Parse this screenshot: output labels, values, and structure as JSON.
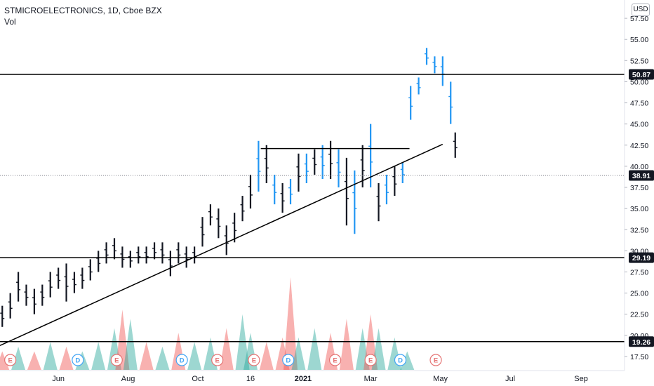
{
  "header": {
    "symbol": "STMICROELECTRONICS, 1D, Cboe BZX",
    "volume_label": "Vol"
  },
  "currency_label": "USD",
  "colors": {
    "up_bar": "#2196f3",
    "down_bar": "#131722",
    "volume_up": "#26a69a",
    "volume_down": "#ef5350",
    "earnings_marker": "#e57373",
    "dividend_marker": "#42a5f5",
    "line": "#000000"
  },
  "chart_data": {
    "type": "ohlc",
    "title": "STMICROELECTRONICS, 1D, Cboe BZX",
    "y_axis": {
      "ticks": [
        "17.50",
        "20.00",
        "22.50",
        "25.00",
        "27.50",
        "30.00",
        "32.50",
        "35.00",
        "37.50",
        "40.00",
        "42.50",
        "45.00",
        "47.50",
        "50.00",
        "52.50",
        "55.00",
        "57.50"
      ],
      "range": [
        16.5,
        59.5
      ],
      "side": "right"
    },
    "x_axis": {
      "ticks": [
        {
          "label": "Jun",
          "date": "2020-06-01",
          "bold": false
        },
        {
          "label": "Aug",
          "date": "2020-08-01",
          "bold": false
        },
        {
          "label": "Oct",
          "date": "2020-10-01",
          "bold": false
        },
        {
          "label": "16",
          "date": "2020-11-16",
          "bold": false
        },
        {
          "label": "2021",
          "date": "2021-01-01",
          "bold": true
        },
        {
          "label": "Mar",
          "date": "2021-03-01",
          "bold": false
        },
        {
          "label": "May",
          "date": "2021-05-01",
          "bold": false
        },
        {
          "label": "Jul",
          "date": "2021-07-01",
          "bold": false
        },
        {
          "label": "Sep",
          "date": "2021-09-01",
          "bold": false
        }
      ],
      "range": [
        "2020-04-11",
        "2021-10-09"
      ]
    },
    "last_price": "38.91",
    "horizontal_levels": [
      "50.87",
      "29.19",
      "19.26"
    ],
    "trendline": {
      "from": {
        "date": "2020-04-11",
        "price": 18.8
      },
      "to": {
        "date": "2021-05-03",
        "price": 42.6
      }
    },
    "resistance_segment": {
      "from": {
        "date": "2020-11-25",
        "price": 42.1
      },
      "to": {
        "date": "2021-04-04",
        "price": 42.1
      }
    },
    "price_bars": [
      {
        "date": "2020-04-13",
        "low": 21.0,
        "high": 23.5
      },
      {
        "date": "2020-04-20",
        "low": 22.0,
        "high": 25.0
      },
      {
        "date": "2020-04-27",
        "low": 24.0,
        "high": 27.5
      },
      {
        "date": "2020-05-04",
        "low": 23.5,
        "high": 26.0
      },
      {
        "date": "2020-05-11",
        "low": 22.5,
        "high": 25.5
      },
      {
        "date": "2020-05-18",
        "low": 23.5,
        "high": 26.0
      },
      {
        "date": "2020-05-25",
        "low": 24.5,
        "high": 27.5
      },
      {
        "date": "2020-06-01",
        "low": 25.5,
        "high": 28.0
      },
      {
        "date": "2020-06-08",
        "low": 24.0,
        "high": 28.5
      },
      {
        "date": "2020-06-15",
        "low": 25.0,
        "high": 27.5
      },
      {
        "date": "2020-06-22",
        "low": 25.5,
        "high": 28.0
      },
      {
        "date": "2020-06-29",
        "low": 26.5,
        "high": 29.0
      },
      {
        "date": "2020-07-06",
        "low": 27.5,
        "high": 30.0
      },
      {
        "date": "2020-07-13",
        "low": 28.5,
        "high": 31.0
      },
      {
        "date": "2020-07-20",
        "low": 29.0,
        "high": 31.5
      },
      {
        "date": "2020-07-27",
        "low": 28.0,
        "high": 30.5
      },
      {
        "date": "2020-08-03",
        "low": 28.0,
        "high": 30.0
      },
      {
        "date": "2020-08-10",
        "low": 28.5,
        "high": 30.5
      },
      {
        "date": "2020-08-17",
        "low": 28.5,
        "high": 30.5
      },
      {
        "date": "2020-08-24",
        "low": 29.0,
        "high": 31.0
      },
      {
        "date": "2020-08-31",
        "low": 28.5,
        "high": 31.0
      },
      {
        "date": "2020-09-07",
        "low": 27.0,
        "high": 30.0
      },
      {
        "date": "2020-09-14",
        "low": 28.5,
        "high": 31.0
      },
      {
        "date": "2020-09-21",
        "low": 28.0,
        "high": 30.5
      },
      {
        "date": "2020-09-28",
        "low": 28.5,
        "high": 30.5
      },
      {
        "date": "2020-10-05",
        "low": 30.5,
        "high": 34.0
      },
      {
        "date": "2020-10-12",
        "low": 33.0,
        "high": 35.5
      },
      {
        "date": "2020-10-19",
        "low": 31.5,
        "high": 35.0
      },
      {
        "date": "2020-10-26",
        "low": 29.5,
        "high": 33.0
      },
      {
        "date": "2020-11-02",
        "low": 31.0,
        "high": 34.5
      },
      {
        "date": "2020-11-09",
        "low": 33.5,
        "high": 36.5
      },
      {
        "date": "2020-11-16",
        "low": 35.0,
        "high": 39.0
      },
      {
        "date": "2020-11-23",
        "low": 37.0,
        "high": 43.0
      },
      {
        "date": "2020-11-30",
        "low": 38.0,
        "high": 42.5
      },
      {
        "date": "2020-12-07",
        "low": 35.5,
        "high": 39.0
      },
      {
        "date": "2020-12-14",
        "low": 34.5,
        "high": 38.0
      },
      {
        "date": "2020-12-21",
        "low": 35.5,
        "high": 38.5
      },
      {
        "date": "2020-12-28",
        "low": 37.0,
        "high": 41.5
      },
      {
        "date": "2021-01-04",
        "low": 38.0,
        "high": 41.5
      },
      {
        "date": "2021-01-11",
        "low": 39.0,
        "high": 42.0
      },
      {
        "date": "2021-01-18",
        "low": 38.5,
        "high": 42.5
      },
      {
        "date": "2021-01-25",
        "low": 38.5,
        "high": 43.0
      },
      {
        "date": "2021-02-01",
        "low": 37.5,
        "high": 42.0
      },
      {
        "date": "2021-02-08",
        "low": 33.0,
        "high": 41.0
      },
      {
        "date": "2021-02-15",
        "low": 32.0,
        "high": 39.5
      },
      {
        "date": "2021-02-22",
        "low": 37.5,
        "high": 42.5
      },
      {
        "date": "2021-03-01",
        "low": 37.5,
        "high": 45.0
      },
      {
        "date": "2021-03-08",
        "low": 33.5,
        "high": 38.0
      },
      {
        "date": "2021-03-15",
        "low": 35.5,
        "high": 39.0
      },
      {
        "date": "2021-03-22",
        "low": 36.5,
        "high": 40.0
      },
      {
        "date": "2021-03-29",
        "low": 38.0,
        "high": 40.5
      },
      {
        "date": "2021-04-05",
        "low": 45.5,
        "high": 49.5
      },
      {
        "date": "2021-04-12",
        "low": 48.5,
        "high": 50.5
      },
      {
        "date": "2021-04-19",
        "low": 52.0,
        "high": 54.0
      },
      {
        "date": "2021-04-26",
        "low": 51.0,
        "high": 53.0
      },
      {
        "date": "2021-05-03",
        "low": 49.5,
        "high": 53.0
      },
      {
        "date": "2021-05-10",
        "low": 45.0,
        "high": 50.0
      },
      {
        "date": "2021-05-14",
        "low": 41.0,
        "high": 44.0
      }
    ],
    "volume": [
      {
        "date": "2020-04-13",
        "value": 0.2,
        "dir": "down"
      },
      {
        "date": "2020-04-27",
        "value": 0.25,
        "dir": "up"
      },
      {
        "date": "2020-05-11",
        "value": 0.2,
        "dir": "down"
      },
      {
        "date": "2020-05-25",
        "value": 0.3,
        "dir": "up"
      },
      {
        "date": "2020-06-08",
        "value": 0.25,
        "dir": "down"
      },
      {
        "date": "2020-06-22",
        "value": 0.2,
        "dir": "up"
      },
      {
        "date": "2020-07-06",
        "value": 0.3,
        "dir": "up"
      },
      {
        "date": "2020-07-20",
        "value": 0.45,
        "dir": "up"
      },
      {
        "date": "2020-07-27",
        "value": 0.65,
        "dir": "down"
      },
      {
        "date": "2020-08-03",
        "value": 0.55,
        "dir": "up"
      },
      {
        "date": "2020-08-17",
        "value": 0.3,
        "dir": "down"
      },
      {
        "date": "2020-08-31",
        "value": 0.25,
        "dir": "up"
      },
      {
        "date": "2020-09-14",
        "value": 0.4,
        "dir": "down"
      },
      {
        "date": "2020-09-28",
        "value": 0.3,
        "dir": "up"
      },
      {
        "date": "2020-10-12",
        "value": 0.35,
        "dir": "up"
      },
      {
        "date": "2020-10-26",
        "value": 0.45,
        "dir": "down"
      },
      {
        "date": "2020-11-09",
        "value": 0.6,
        "dir": "up"
      },
      {
        "date": "2020-11-16",
        "value": 0.4,
        "dir": "up"
      },
      {
        "date": "2020-11-30",
        "value": 0.3,
        "dir": "down"
      },
      {
        "date": "2020-12-14",
        "value": 0.35,
        "dir": "down"
      },
      {
        "date": "2020-12-21",
        "value": 1.0,
        "dir": "down"
      },
      {
        "date": "2020-12-28",
        "value": 0.35,
        "dir": "up"
      },
      {
        "date": "2021-01-11",
        "value": 0.45,
        "dir": "up"
      },
      {
        "date": "2021-01-25",
        "value": 0.4,
        "dir": "down"
      },
      {
        "date": "2021-02-08",
        "value": 0.55,
        "dir": "down"
      },
      {
        "date": "2021-02-22",
        "value": 0.45,
        "dir": "up"
      },
      {
        "date": "2021-03-01",
        "value": 0.6,
        "dir": "down"
      },
      {
        "date": "2021-03-08",
        "value": 0.45,
        "dir": "up"
      },
      {
        "date": "2021-03-22",
        "value": 0.35,
        "dir": "up"
      },
      {
        "date": "2021-04-02",
        "value": 0.2,
        "dir": "up"
      }
    ],
    "events": [
      {
        "type": "E",
        "date": "2020-04-20"
      },
      {
        "type": "D",
        "date": "2020-06-18"
      },
      {
        "type": "E",
        "date": "2020-07-22"
      },
      {
        "type": "D",
        "date": "2020-09-17"
      },
      {
        "type": "E",
        "date": "2020-10-18"
      },
      {
        "type": "E",
        "date": "2020-11-19"
      },
      {
        "type": "D",
        "date": "2020-12-19"
      },
      {
        "type": "E",
        "date": "2021-01-29"
      },
      {
        "type": "E",
        "date": "2021-03-01"
      },
      {
        "type": "D",
        "date": "2021-03-27"
      },
      {
        "type": "E",
        "date": "2021-04-27"
      }
    ]
  }
}
